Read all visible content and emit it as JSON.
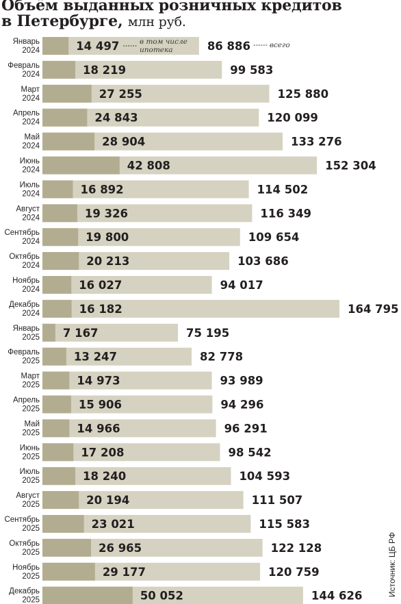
{
  "title": {
    "line1": "Объём выданных розничных кредитов",
    "line2": "в Петербурге,",
    "unit": "млн руб."
  },
  "source": "Источник: ЦБ РФ",
  "colors": {
    "mortgage": "#b2ad91",
    "total": "#d5d2c1",
    "text": "#231f20"
  },
  "chart_data": {
    "type": "bar",
    "orientation": "horizontal",
    "categories": [
      [
        "Январь",
        "2024"
      ],
      [
        "Февраль",
        "2024"
      ],
      [
        "Март",
        "2024"
      ],
      [
        "Апрель",
        "2024"
      ],
      [
        "Май",
        "2024"
      ],
      [
        "Июнь",
        "2024"
      ],
      [
        "Июль",
        "2024"
      ],
      [
        "Август",
        "2024"
      ],
      [
        "Сентябрь",
        "2024"
      ],
      [
        "Октябрь",
        "2024"
      ],
      [
        "Ноябрь",
        "2024"
      ],
      [
        "Декабрь",
        "2024"
      ],
      [
        "Январь",
        "2025"
      ],
      [
        "Февраль",
        "2025"
      ],
      [
        "Март",
        "2025"
      ],
      [
        "Апрель",
        "2025"
      ],
      [
        "Май",
        "2025"
      ],
      [
        "Июнь",
        "2025"
      ],
      [
        "Июль",
        "2025"
      ],
      [
        "Август",
        "2025"
      ],
      [
        "Сентябрь",
        "2025"
      ],
      [
        "Октябрь",
        "2025"
      ],
      [
        "Ноябрь",
        "2025"
      ],
      [
        "Декабрь",
        "2025"
      ]
    ],
    "series": [
      {
        "name": "всего",
        "values": [
          86886,
          99583,
          125880,
          120099,
          133276,
          152304,
          114502,
          116349,
          109654,
          103686,
          94017,
          164795,
          75195,
          82778,
          93989,
          94296,
          96291,
          98542,
          104593,
          111507,
          115583,
          122128,
          120759,
          144626
        ],
        "labels": [
          "86 886",
          "99 583",
          "125 880",
          "120 099",
          "133 276",
          "152 304",
          "114 502",
          "116 349",
          "109 654",
          "103 686",
          "94 017",
          "164 795",
          "75 195",
          "82 778",
          "93 989",
          "94 296",
          "96 291",
          "98 542",
          "104 593",
          "111 507",
          "115 583",
          "122 128",
          "120 759",
          "144 626"
        ]
      },
      {
        "name": "в том числе ипотека",
        "values": [
          14497,
          18219,
          27255,
          24843,
          28904,
          42808,
          16892,
          19326,
          19800,
          20213,
          16027,
          16182,
          7167,
          13247,
          14973,
          15906,
          14966,
          17208,
          18240,
          20194,
          23021,
          26965,
          29177,
          50052
        ],
        "labels": [
          "14 497",
          "18 219",
          "27 255",
          "24 843",
          "28 904",
          "42 808",
          "16 892",
          "19 326",
          "19 800",
          "20 213",
          "16 027",
          "16 182",
          "7 167",
          "13 247",
          "14 973",
          "15 906",
          "14 966",
          "17 208",
          "18 240",
          "20 194",
          "23 021",
          "26 965",
          "29 177",
          "50 052"
        ]
      }
    ],
    "annotations": {
      "total": "всего",
      "mortgage_line1": "в том числе",
      "mortgage_line2": "ипотека"
    }
  }
}
